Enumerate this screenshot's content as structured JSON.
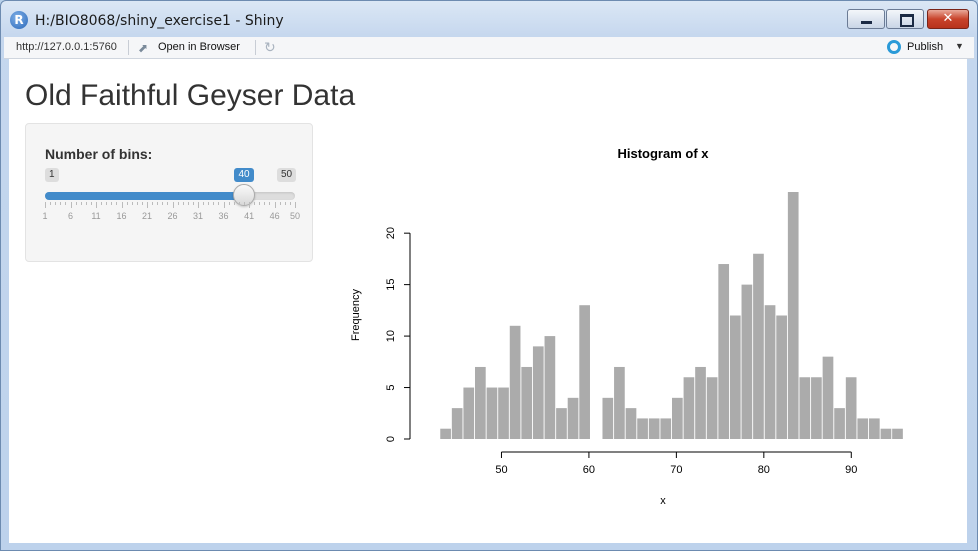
{
  "window": {
    "title": "H:/BIO8068/shiny_exercise1 - Shiny",
    "app_icon_letter": "R"
  },
  "toolbar": {
    "url": "http://127.0.0.1:5760",
    "open_browser_label": "Open in Browser",
    "publish_label": "Publish"
  },
  "page": {
    "title": "Old Faithful Geyser Data"
  },
  "slider": {
    "label": "Number of bins:",
    "min_label": "1",
    "max_label": "50",
    "value_label": "40",
    "min": 1,
    "max": 50,
    "value": 40,
    "tick_labels": [
      "1",
      "6",
      "11",
      "16",
      "21",
      "26",
      "31",
      "36",
      "41",
      "46",
      "50"
    ],
    "accent_color": "#428bca"
  },
  "chart_data": {
    "type": "bar",
    "title": "Histogram of x",
    "xlabel": "x",
    "ylabel": "Frequency",
    "xlim": [
      42,
      97
    ],
    "ylim": [
      0,
      24
    ],
    "x_ticks": [
      "50",
      "60",
      "70",
      "80",
      "90"
    ],
    "y_ticks": [
      "0",
      "5",
      "10",
      "15",
      "20"
    ],
    "bin_start": 43,
    "bin_width": 1.325,
    "values": [
      1,
      3,
      5,
      7,
      5,
      5,
      11,
      7,
      9,
      10,
      3,
      4,
      13,
      0,
      4,
      7,
      3,
      2,
      2,
      2,
      4,
      6,
      7,
      6,
      17,
      12,
      15,
      18,
      13,
      12,
      24,
      6,
      6,
      8,
      3,
      6,
      2,
      2,
      1,
      1
    ],
    "bar_color": "#ababab"
  }
}
